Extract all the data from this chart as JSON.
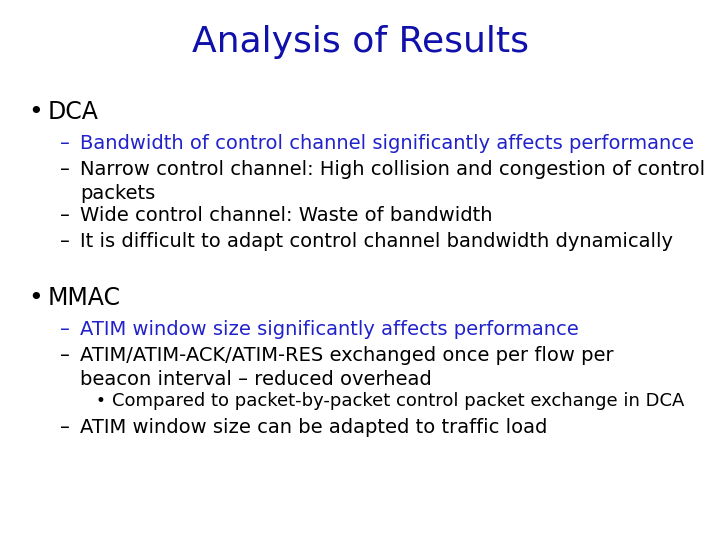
{
  "title": "Analysis of Results",
  "title_color": "#1010aa",
  "title_fontsize": 26,
  "background_color": "#ffffff",
  "bullet_color": "#000000",
  "bullet_fontsize": 17,
  "sub_color": "#000000",
  "sub_fontsize": 14,
  "highlight_color": "#2222cc",
  "figsize": [
    7.2,
    5.4
  ],
  "dpi": 100,
  "items": [
    {
      "bullet": "DCA",
      "subitems": [
        {
          "text": "Bandwidth of control channel significantly affects performance",
          "highlight": true,
          "level": 1,
          "lines": 1
        },
        {
          "text": "Narrow control channel: High collision and congestion of control\npackets",
          "highlight": false,
          "level": 1,
          "lines": 2
        },
        {
          "text": "Wide control channel: Waste of bandwidth",
          "highlight": false,
          "level": 1,
          "lines": 1
        },
        {
          "text": "It is difficult to adapt control channel bandwidth dynamically",
          "highlight": false,
          "level": 1,
          "lines": 1
        }
      ]
    },
    {
      "bullet": "MMAC",
      "subitems": [
        {
          "text": "ATIM window size significantly affects performance",
          "highlight": true,
          "level": 1,
          "lines": 1
        },
        {
          "text": "ATIM/ATIM-ACK/ATIM-RES exchanged once per flow per\nbeacon interval – reduced overhead",
          "highlight": false,
          "level": 1,
          "lines": 2
        },
        {
          "text": "Compared to packet-by-packet control packet exchange in DCA",
          "highlight": false,
          "level": 2,
          "lines": 1
        },
        {
          "text": "ATIM window size can be adapted to traffic load",
          "highlight": false,
          "level": 1,
          "lines": 1
        }
      ]
    }
  ]
}
